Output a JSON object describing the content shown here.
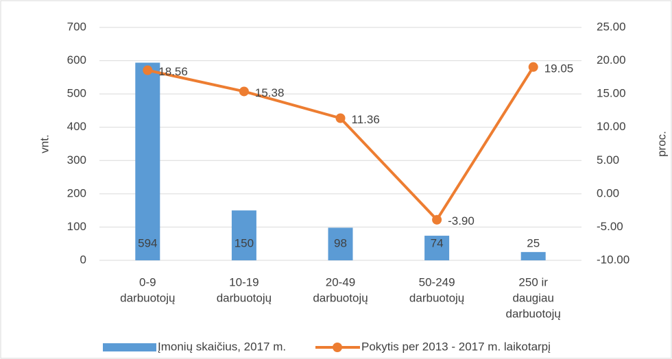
{
  "chart_data": {
    "type": "bar-line",
    "categories": [
      [
        "0-9",
        "darbuotojų"
      ],
      [
        "10-19",
        "darbuotojų"
      ],
      [
        "20-49",
        "darbuotojų"
      ],
      [
        "50-249",
        "darbuotojų"
      ],
      [
        "250 ir",
        "daugiau",
        "darbuotojų"
      ]
    ],
    "series": [
      {
        "name": "Įmonių skaičius, 2017 m.",
        "type": "bar",
        "color": "#5b9bd5",
        "values": [
          594,
          150,
          98,
          74,
          25
        ]
      },
      {
        "name": "Pokytis per 2013 - 2017 m. laikotarpį",
        "type": "line",
        "axis": "y2",
        "color": "#ed7d31",
        "values": [
          18.56,
          15.38,
          11.36,
          -3.9,
          19.05
        ],
        "value_labels": [
          "18.56",
          "15.38",
          "11.36",
          "-3.90",
          "19.05"
        ]
      }
    ],
    "ylabel": "vnt.",
    "y2label": "proc.",
    "ylim": [
      0,
      700
    ],
    "yticks": [
      0,
      100,
      200,
      300,
      400,
      500,
      600,
      700
    ],
    "y2lim": [
      -10,
      25
    ],
    "y2ticks": [
      {
        "value": -10,
        "label": "-10.00"
      },
      {
        "value": -5,
        "label": "-5.00"
      },
      {
        "value": 0,
        "label": "0.00"
      },
      {
        "value": 5,
        "label": "5.00"
      },
      {
        "value": 10,
        "label": "10.00"
      },
      {
        "value": 15,
        "label": "15.00"
      },
      {
        "value": 20,
        "label": "20.00"
      },
      {
        "value": 25,
        "label": "25.00"
      }
    ],
    "grid": true,
    "legend": "bottom"
  }
}
